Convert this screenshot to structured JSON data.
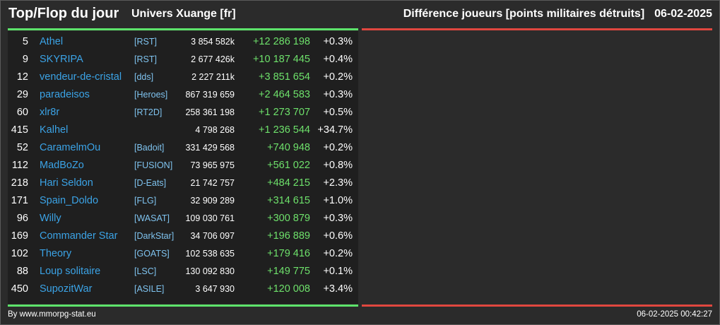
{
  "header": {
    "title": "Top/Flop du jour",
    "server": "Univers Xuange [fr]",
    "subtitle": "Différence joueurs [points militaires détruits]",
    "date": "06-02-2025"
  },
  "colors": {
    "top_bar": "#5de36b",
    "flop_bar": "#e0473f",
    "player_name": "#3ba3e6",
    "alliance": "#7fc3ef",
    "diff_positive": "#6ee16b"
  },
  "top_rows": [
    {
      "rank": "5",
      "name": "Athel",
      "alliance": "[RST]",
      "points": "3 854 582k",
      "diff": "+12 286 198",
      "pct": "+0.3%"
    },
    {
      "rank": "9",
      "name": "SKYRIPA",
      "alliance": "[RST]",
      "points": "2 677 426k",
      "diff": "+10 187 445",
      "pct": "+0.4%"
    },
    {
      "rank": "12",
      "name": "vendeur-de-cristal",
      "alliance": "[dds]",
      "points": "2 227 211k",
      "diff": "+3 851 654",
      "pct": "+0.2%"
    },
    {
      "rank": "29",
      "name": "paradeisos",
      "alliance": "[Heroes]",
      "points": "867 319 659",
      "diff": "+2 464 583",
      "pct": "+0.3%"
    },
    {
      "rank": "60",
      "name": "xlr8r",
      "alliance": "[RT2D]",
      "points": "258 361 198",
      "diff": "+1 273 707",
      "pct": "+0.5%"
    },
    {
      "rank": "415",
      "name": "Kalhel",
      "alliance": "",
      "points": "4 798 268",
      "diff": "+1 236 544",
      "pct": "+34.7%"
    },
    {
      "rank": "52",
      "name": "CaramelmOu",
      "alliance": "[Badoit]",
      "points": "331 429 568",
      "diff": "+740 948",
      "pct": "+0.2%"
    },
    {
      "rank": "112",
      "name": "MadBoZo",
      "alliance": "[FUSION]",
      "points": "73 965 975",
      "diff": "+561 022",
      "pct": "+0.8%"
    },
    {
      "rank": "218",
      "name": "Hari Seldon",
      "alliance": "[D-Eats]",
      "points": "21 742 757",
      "diff": "+484 215",
      "pct": "+2.3%"
    },
    {
      "rank": "171",
      "name": "Spain_Doldo",
      "alliance": "[FLG]",
      "points": "32 909 289",
      "diff": "+314 615",
      "pct": "+1.0%"
    },
    {
      "rank": "96",
      "name": "Willy",
      "alliance": "[WASAT]",
      "points": "109 030 761",
      "diff": "+300 879",
      "pct": "+0.3%"
    },
    {
      "rank": "169",
      "name": "Commander Star",
      "alliance": "[DarkStar]",
      "points": "34 706 097",
      "diff": "+196 889",
      "pct": "+0.6%"
    },
    {
      "rank": "102",
      "name": "Theory",
      "alliance": "[GOATS]",
      "points": "102 538 635",
      "diff": "+179 416",
      "pct": "+0.2%"
    },
    {
      "rank": "88",
      "name": "Loup solitaire",
      "alliance": "[LSC]",
      "points": "130 092 830",
      "diff": "+149 775",
      "pct": "+0.1%"
    },
    {
      "rank": "450",
      "name": "SupozitWar",
      "alliance": "[ASILE]",
      "points": "3 647 930",
      "diff": "+120 008",
      "pct": "+3.4%"
    }
  ],
  "flop_rows": [],
  "footer": {
    "credit": "By www.mmorpg-stat.eu",
    "timestamp": "06-02-2025 00:42:27"
  }
}
